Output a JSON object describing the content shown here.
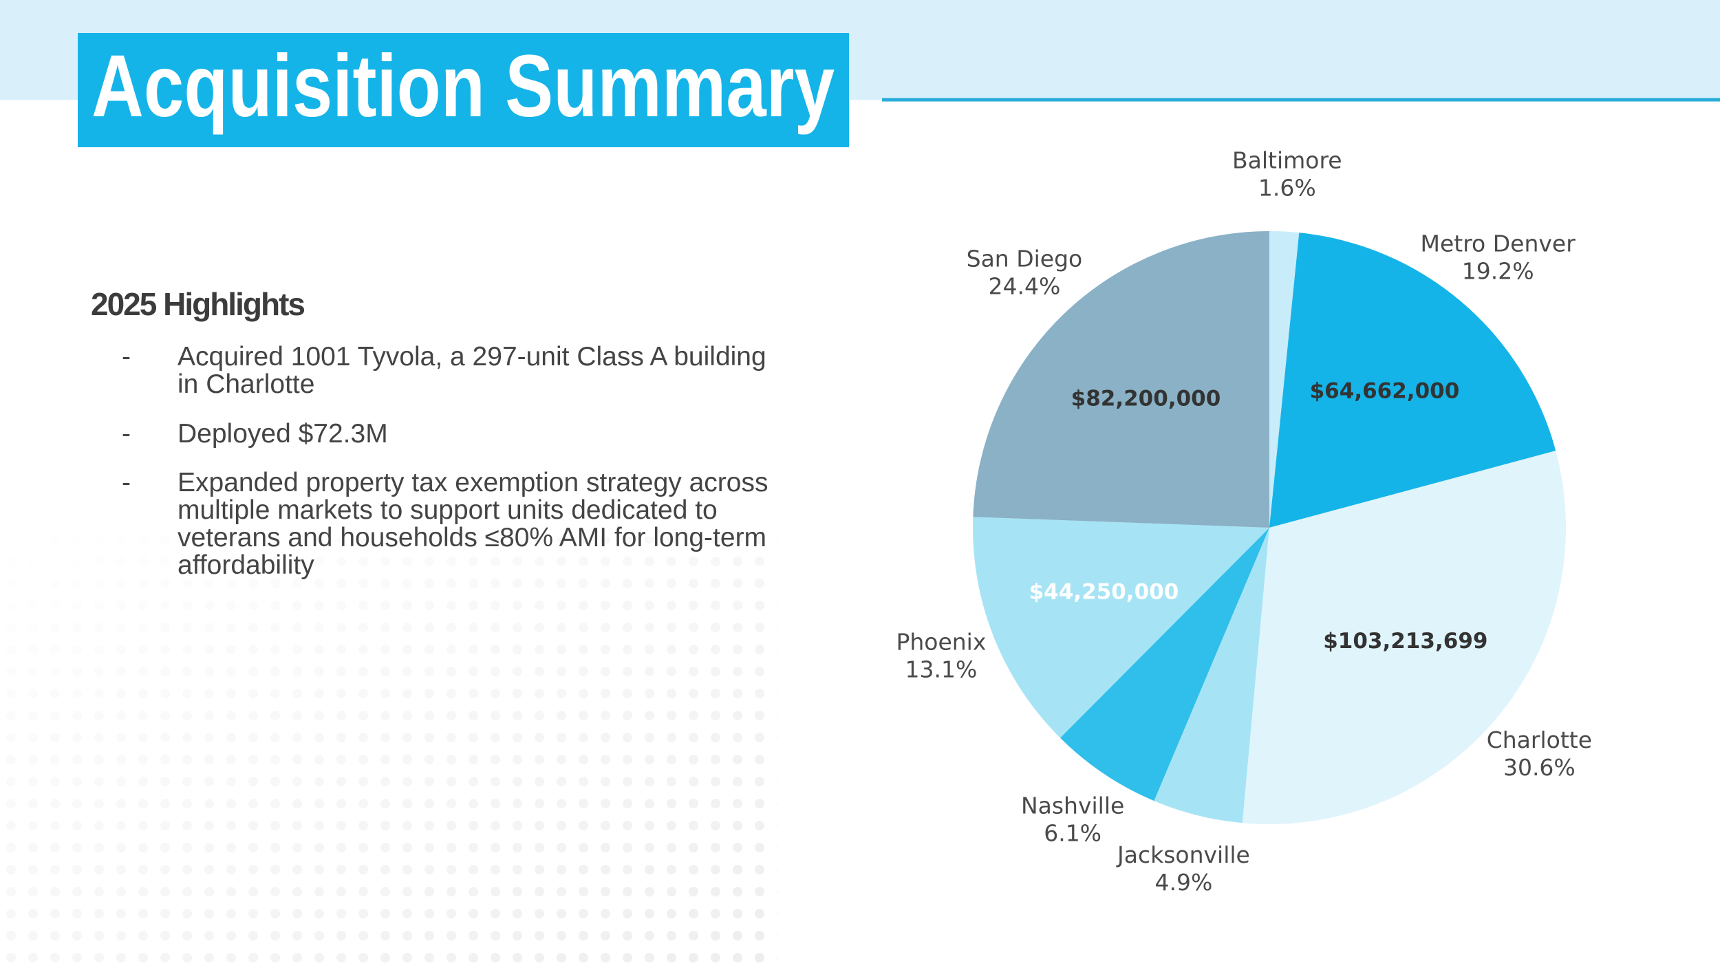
{
  "header": {
    "title": "Acquisition Summary"
  },
  "highlights": {
    "heading": "2025 Highlights",
    "bullet": "-",
    "items": [
      "Acquired 1001 Tyvola, a 297-unit Class A building in Charlotte",
      "Deployed $72.3M",
      "Expanded property tax exemption strategy across multiple markets to support units dedicated to veterans and households ≤80% AMI for long-term affordability"
    ]
  },
  "chart_data": {
    "type": "pie",
    "categories": [
      "Baltimore",
      "Metro Denver",
      "Charlotte",
      "Jacksonville",
      "Nashville",
      "Phoenix",
      "San Diego"
    ],
    "values": [
      1.6,
      19.2,
      30.6,
      4.9,
      6.1,
      13.1,
      24.4
    ],
    "value_labels": [
      "1.6%",
      "19.2%",
      "30.6%",
      "4.9%",
      "6.1%",
      "13.1%",
      "24.4%"
    ],
    "colors": [
      "#c8ecfa",
      "#14b4e8",
      "#e0f4fc",
      "#a6e4f5",
      "#2fbfea",
      "#a6e4f5",
      "#8ab1c6"
    ],
    "amount_labels": [
      null,
      "$64,662,000",
      "$103,213,699",
      null,
      null,
      "$44,250,000",
      "$82,200,000"
    ],
    "amount_label_colors": [
      null,
      "#333333",
      "#333333",
      null,
      null,
      "#ffffff",
      "#333333"
    ]
  }
}
